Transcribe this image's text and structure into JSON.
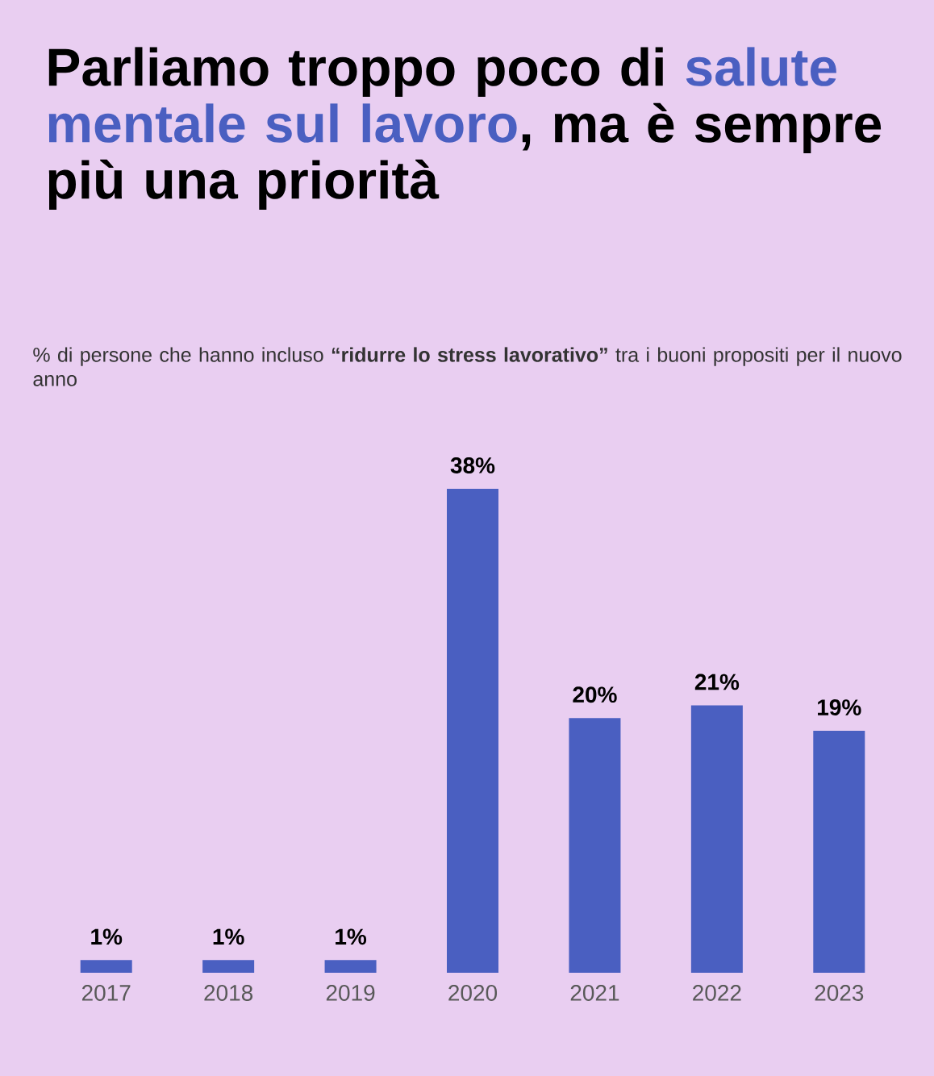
{
  "chart_data": {
    "type": "bar",
    "title": "Parliamo troppo poco di *salute mentale sul lavoro*, ma è sempre più una priorità",
    "subtitle": "% di persone che hanno incluso **“ridurre lo stress lavorativo”** tra i buoni propositi per il nuovo anno",
    "categories": [
      "2017",
      "2018",
      "2019",
      "2020",
      "2021",
      "2022",
      "2023"
    ],
    "values": [
      1,
      1,
      1,
      38,
      20,
      21,
      19
    ],
    "value_labels": [
      "1%",
      "1%",
      "1%",
      "38%",
      "20%",
      "21%",
      "19%"
    ],
    "color": "#4a5fc1"
  }
}
